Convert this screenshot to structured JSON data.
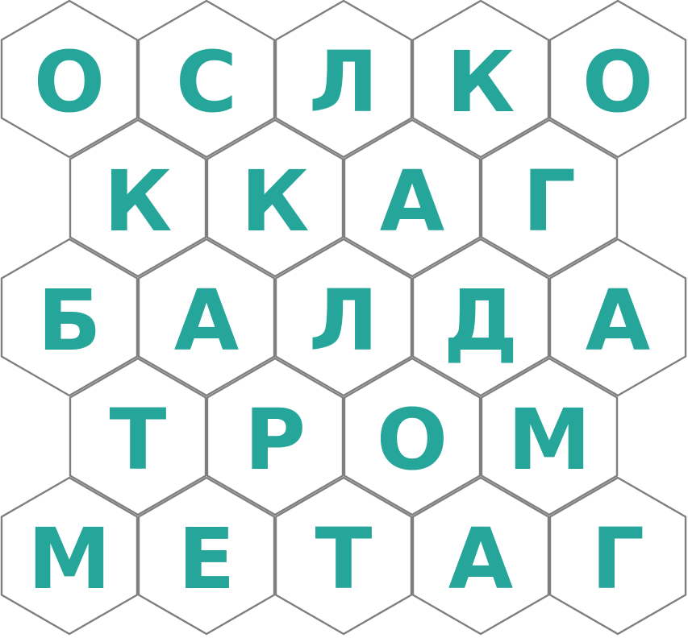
{
  "board": {
    "letter_color": "#26a69a",
    "border_color": "#7f7f7f",
    "rows": [
      [
        "О",
        "С",
        "Л",
        "К",
        "О"
      ],
      [
        "К",
        "К",
        "А",
        "Г"
      ],
      [
        "Б",
        "А",
        "Л",
        "Д",
        "А"
      ],
      [
        "Т",
        "Р",
        "О",
        "М"
      ],
      [
        "М",
        "Е",
        "Т",
        "А",
        "Г"
      ]
    ]
  }
}
